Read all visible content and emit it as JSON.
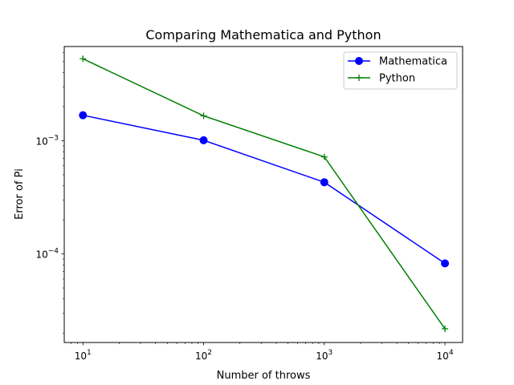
{
  "chart_data": {
    "type": "line",
    "title": "Comparing Mathematica and Python",
    "xlabel": "Number of throws",
    "ylabel": "Error of Pi",
    "xscale": "log",
    "yscale": "log",
    "xlim": [
      7,
      14000
    ],
    "ylim": [
      1.65e-05,
      0.0068
    ],
    "x": [
      10,
      100,
      1000,
      10000
    ],
    "xticks": [
      {
        "value": 10,
        "label": "10",
        "exp": "1"
      },
      {
        "value": 100,
        "label": "10",
        "exp": "2"
      },
      {
        "value": 1000,
        "label": "10",
        "exp": "3"
      },
      {
        "value": 10000,
        "label": "10",
        "exp": "4"
      }
    ],
    "yticks": [
      {
        "value": 0.001,
        "label": "10",
        "exp": "−3"
      },
      {
        "value": 0.0001,
        "label": "10",
        "exp": "−4"
      }
    ],
    "series": [
      {
        "name": "Mathematica",
        "color": "#0000ff",
        "marker": "circle",
        "values": [
          0.00168,
          0.00101,
          0.00043,
          8.25e-05
        ]
      },
      {
        "name": "Python",
        "color": "#008000",
        "marker": "plus",
        "values": [
          0.0053,
          0.00166,
          0.00072,
          2.18e-05
        ]
      }
    ],
    "legend_position": "top-right",
    "grid": false
  }
}
